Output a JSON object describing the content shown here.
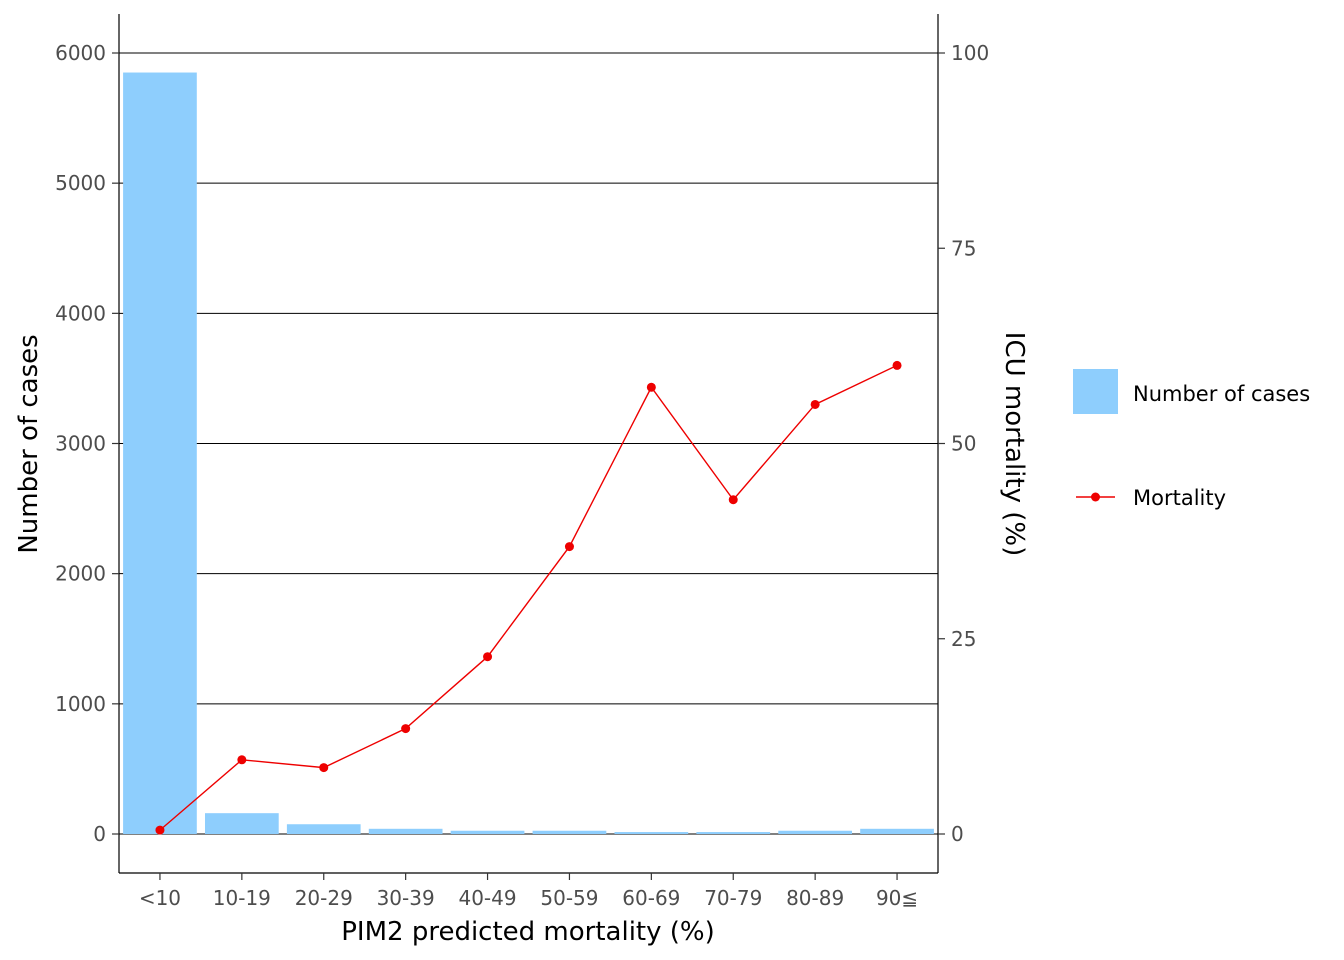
{
  "chart_data": {
    "type": "bar",
    "categories": [
      "<10",
      "10-19",
      "20-29",
      "30-39",
      "40-49",
      "50-59",
      "60-69",
      "70-79",
      "80-89",
      "90≦"
    ],
    "series": [
      {
        "name": "Number of cases",
        "type": "bar",
        "axis": "left",
        "color": "#8ecefd",
        "values": [
          5850,
          160,
          75,
          40,
          25,
          25,
          15,
          15,
          25,
          40
        ]
      },
      {
        "name": "Mortality",
        "type": "line",
        "axis": "right",
        "color": "#ee0000",
        "values": [
          0.5,
          9.5,
          8.5,
          13.5,
          22.7,
          36.8,
          57.2,
          42.8,
          55.0,
          60.0
        ]
      }
    ],
    "xlabel": "PIM2 predicted mortality (%)",
    "ylabel": "Number of cases",
    "y2label": "ICU mortality (%)",
    "ylim": [
      0,
      6000
    ],
    "y2lim": [
      0,
      100
    ],
    "yticks": [
      "0",
      "1000",
      "2000",
      "3000",
      "4000",
      "5000",
      "6000"
    ],
    "y2ticks": [
      "0",
      "25",
      "50",
      "75",
      "100"
    ],
    "grid": "horizontal major lines",
    "legend_position": "right"
  }
}
